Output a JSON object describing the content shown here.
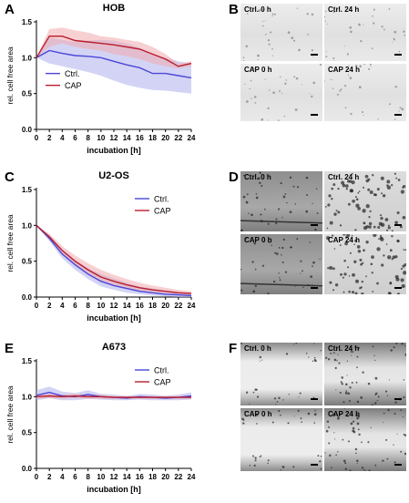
{
  "panel_letters": [
    "A",
    "B",
    "C",
    "D",
    "E",
    "F"
  ],
  "colors": {
    "ctrl": "#4b46d9",
    "cap": "#b81d2e",
    "ctrl_band": "#aeb0ec",
    "cap_band": "#f1a9ad"
  },
  "chart_data": [
    {
      "type": "line",
      "title": "HOB",
      "xlabel": "incubation [h]",
      "ylabel": "rel. cell free area",
      "xlim": [
        0,
        24
      ],
      "ylim": [
        0,
        1.5
      ],
      "xticks": [
        "0",
        "2",
        "4",
        "6",
        "8",
        "10",
        "12",
        "14",
        "16",
        "18",
        "20",
        "22",
        "24"
      ],
      "yticks": [
        "0.0",
        "0.5",
        "1.0",
        "1.5"
      ],
      "legend": "left",
      "x": [
        0,
        2,
        4,
        6,
        8,
        10,
        12,
        14,
        16,
        18,
        20,
        22,
        24
      ],
      "series": [
        {
          "name": "Ctrl.",
          "values": [
            1.0,
            1.1,
            1.06,
            1.03,
            1.02,
            1.0,
            0.95,
            0.9,
            0.86,
            0.78,
            0.78,
            0.75,
            0.72
          ],
          "lower": [
            1.0,
            0.92,
            0.88,
            0.84,
            0.8,
            0.75,
            0.68,
            0.62,
            0.58,
            0.55,
            0.54,
            0.52,
            0.5
          ],
          "upper": [
            1.0,
            1.28,
            1.25,
            1.22,
            1.24,
            1.25,
            1.24,
            1.2,
            1.14,
            1.05,
            1.0,
            0.95,
            0.92
          ]
        },
        {
          "name": "CAP",
          "values": [
            1.0,
            1.3,
            1.3,
            1.24,
            1.22,
            1.2,
            1.18,
            1.15,
            1.12,
            1.05,
            0.98,
            0.88,
            0.92
          ],
          "lower": [
            1.0,
            1.15,
            1.2,
            1.15,
            1.12,
            1.1,
            1.05,
            1.02,
            0.98,
            0.92,
            0.88,
            0.85,
            0.88
          ],
          "upper": [
            1.0,
            1.4,
            1.42,
            1.38,
            1.35,
            1.3,
            1.28,
            1.25,
            1.22,
            1.15,
            1.05,
            0.92,
            0.95
          ]
        }
      ]
    },
    {
      "type": "line",
      "title": "U2-OS",
      "xlabel": "incubation [h]",
      "ylabel": "rel. cell free area",
      "xlim": [
        0,
        24
      ],
      "ylim": [
        0,
        1.5
      ],
      "xticks": [
        "0",
        "2",
        "4",
        "6",
        "8",
        "10",
        "12",
        "14",
        "16",
        "18",
        "20",
        "22",
        "24"
      ],
      "yticks": [
        "0.0",
        "0.5",
        "1.0",
        "1.5"
      ],
      "legend": "top-right",
      "x": [
        0,
        2,
        4,
        6,
        8,
        10,
        12,
        14,
        16,
        18,
        20,
        22,
        24
      ],
      "series": [
        {
          "name": "Ctrl.",
          "values": [
            1.0,
            0.82,
            0.6,
            0.45,
            0.32,
            0.22,
            0.16,
            0.12,
            0.08,
            0.06,
            0.04,
            0.03,
            0.02
          ],
          "lower": [
            1.0,
            0.78,
            0.54,
            0.38,
            0.25,
            0.15,
            0.1,
            0.06,
            0.04,
            0.02,
            0.01,
            0.0,
            0.0
          ],
          "upper": [
            1.0,
            0.86,
            0.66,
            0.52,
            0.4,
            0.32,
            0.26,
            0.2,
            0.15,
            0.12,
            0.09,
            0.07,
            0.05
          ]
        },
        {
          "name": "CAP",
          "values": [
            1.0,
            0.84,
            0.65,
            0.5,
            0.38,
            0.28,
            0.22,
            0.17,
            0.13,
            0.1,
            0.08,
            0.06,
            0.05
          ],
          "lower": [
            1.0,
            0.8,
            0.6,
            0.44,
            0.31,
            0.22,
            0.16,
            0.12,
            0.09,
            0.07,
            0.05,
            0.04,
            0.03
          ],
          "upper": [
            1.0,
            0.88,
            0.71,
            0.58,
            0.47,
            0.38,
            0.31,
            0.25,
            0.2,
            0.16,
            0.13,
            0.1,
            0.08
          ]
        }
      ]
    },
    {
      "type": "line",
      "title": "A673",
      "xlabel": "incubation [h]",
      "ylabel": "rel. cell free area",
      "xlim": [
        0,
        24
      ],
      "ylim": [
        0,
        1.5
      ],
      "xticks": [
        "0",
        "2",
        "4",
        "6",
        "8",
        "10",
        "12",
        "14",
        "16",
        "18",
        "20",
        "22",
        "24"
      ],
      "yticks": [
        "0.0",
        "0.5",
        "1.0",
        "1.5"
      ],
      "legend": "top-right",
      "x": [
        0,
        2,
        4,
        6,
        8,
        10,
        12,
        14,
        16,
        18,
        20,
        22,
        24
      ],
      "series": [
        {
          "name": "Ctrl.",
          "values": [
            1.02,
            1.06,
            1.01,
            1.0,
            1.03,
            1.0,
            0.99,
            0.98,
            1.0,
            0.99,
            0.98,
            0.99,
            1.01
          ],
          "lower": [
            0.95,
            0.98,
            0.95,
            0.95,
            0.97,
            0.96,
            0.95,
            0.95,
            0.96,
            0.95,
            0.95,
            0.95,
            0.96
          ],
          "upper": [
            1.09,
            1.14,
            1.07,
            1.05,
            1.09,
            1.04,
            1.03,
            1.01,
            1.04,
            1.03,
            1.01,
            1.03,
            1.06
          ]
        },
        {
          "name": "CAP",
          "values": [
            1.0,
            1.01,
            1.0,
            1.01,
            1.0,
            1.0,
            0.99,
            0.99,
            0.99,
            0.99,
            0.99,
            0.99,
            0.99
          ],
          "lower": [
            0.97,
            0.98,
            0.97,
            0.98,
            0.97,
            0.97,
            0.97,
            0.97,
            0.97,
            0.97,
            0.97,
            0.97,
            0.97
          ],
          "upper": [
            1.03,
            1.04,
            1.03,
            1.04,
            1.03,
            1.03,
            1.01,
            1.01,
            1.01,
            1.01,
            1.01,
            1.01,
            1.01
          ]
        }
      ]
    }
  ],
  "micrographs": [
    {
      "panel": "B",
      "labels": [
        "Ctrl. 0 h",
        "Ctrl. 24 h",
        "CAP 0 h",
        "CAP 24 h"
      ],
      "tone": "light"
    },
    {
      "panel": "D",
      "labels": [
        "Ctrl. 0 h",
        "Ctrl. 24 h",
        "CAP 0 h",
        "CAP 24 h"
      ],
      "tone": "dark"
    },
    {
      "panel": "F",
      "labels": [
        "Ctrl. 0 h",
        "Ctrl. 24 h",
        "CAP 0 h",
        "CAP 24 h"
      ],
      "tone": "scratch"
    }
  ]
}
